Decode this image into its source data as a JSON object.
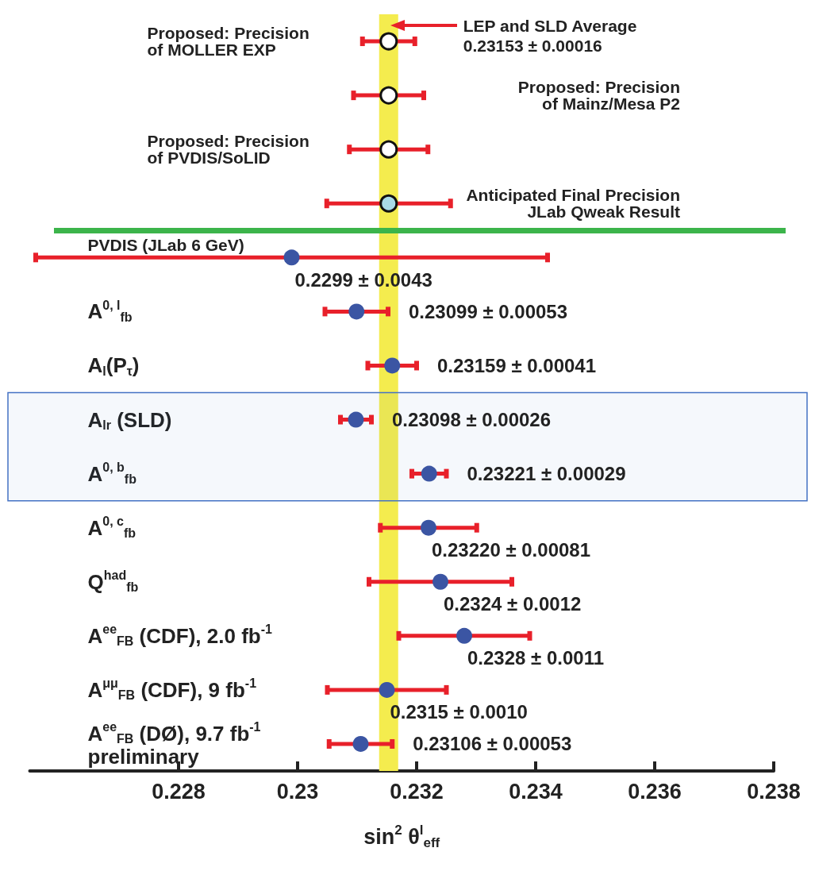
{
  "chart_data": {
    "type": "scatter",
    "orientation": "horizontal",
    "marker": "circle",
    "categories": [
      "Proposed: Precision\nof MOLLER EXP",
      "Proposed: Precision\nof Mainz/Mesa P2",
      "Proposed: Precision\nof PVDIS/SoLID",
      "Anticipated Final Precision\nJLab Qweak Result",
      "PVDIS (JLab 6 GeV)",
      "A$^{0, l}$$_{fb}$",
      "A$_{l}$(P$_{τ}$)",
      "A$_{lr}$ (SLD)",
      "A$^{0, b}$$_{fb}$",
      "A$^{0, c}$$_{fb}$",
      "Q$^{had}$$_{fb}$",
      "A$^{ee}$$_{FB}$ (CDF), 2.0 fb$^{-1}$",
      "A$^{μμ}$$_{FB}$ (CDF), 9 fb$^{-1}$",
      "A$^{ee}$$_{FB}$ (DØ), 9.7 fb$^{-1}$\npreliminary"
    ],
    "series": [
      {
        "colors": [
          "#ffffff",
          "#ffffff",
          "#ffffff",
          "#a9dbe8",
          null,
          null,
          null,
          null,
          null,
          null,
          null,
          null,
          null,
          null
        ],
        "values": [
          0.23153,
          0.23153,
          0.23153,
          0.23153,
          null,
          null,
          null,
          null,
          null,
          null,
          null,
          null,
          null,
          null
        ],
        "errors": [
          0.00044,
          0.00059,
          0.00066,
          0.00104,
          null,
          null,
          null,
          null,
          null,
          null,
          null,
          null,
          null,
          null
        ]
      },
      {
        "color": "#3b55a3",
        "values": [
          null,
          null,
          null,
          null,
          0.2299,
          0.23099,
          0.23159,
          0.23098,
          0.23221,
          0.2322,
          0.2324,
          0.2328,
          0.2315,
          0.23106
        ],
        "errors": [
          null,
          null,
          null,
          null,
          0.0043,
          0.00053,
          0.00041,
          0.00026,
          0.00029,
          0.00081,
          0.0012,
          0.0011,
          0.001,
          0.00053
        ],
        "value_labels": [
          null,
          null,
          null,
          null,
          "0.2299 ± 0.0043",
          "0.23099 ± 0.00053",
          "0.23159 ± 0.00041",
          "0.23098 ± 0.00026",
          "0.23221 ± 0.00029",
          "0.23220 ± 0.00081",
          "0.2324 ± 0.0012",
          "0.2328 ± 0.0011",
          "0.2315 ± 0.0010",
          "0.23106 ± 0.00053"
        ]
      }
    ],
    "xlim": [
      0.2255,
      0.238
    ],
    "xticks": [
      0.228,
      0.23,
      0.232,
      0.234,
      0.236,
      0.238
    ],
    "xlabel": "sin$^{2}$ θ$^{l}$$_{eff}$",
    "bands": [
      {
        "axis": "x",
        "from": 0.23137,
        "to": 0.23169,
        "label": "LEP and SLD Average\n0.23153 ± 0.00016",
        "color": "#f4ec4e"
      },
      {
        "axis": "y",
        "from": "A$_{lr}$ (SLD)",
        "to": "A$^{0, b}$$_{fb}$",
        "color": "#4472c4"
      }
    ]
  }
}
